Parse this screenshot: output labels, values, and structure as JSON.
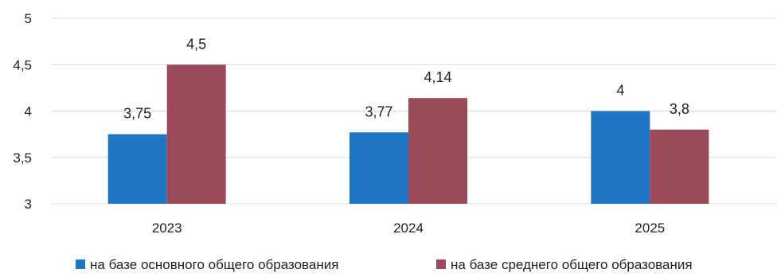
{
  "chart_data": {
    "type": "bar",
    "title": "",
    "xlabel": "",
    "ylabel": "",
    "categories": [
      "2023",
      "2024",
      "2025"
    ],
    "series": [
      {
        "name": "на базе основного общего образования",
        "color": "#1f77c4",
        "values": [
          3.75,
          3.77,
          4
        ],
        "labels": [
          "3,75",
          "3,77",
          "4"
        ]
      },
      {
        "name": "на базе среднего общего образования",
        "color": "#9b4a5a",
        "values": [
          4.5,
          4.14,
          3.8
        ],
        "labels": [
          "4,5",
          "4,14",
          "3,8"
        ]
      }
    ],
    "ylim": [
      3,
      5
    ],
    "yticks": [
      3,
      3.5,
      4,
      4.5,
      5
    ],
    "ytick_labels": [
      "3",
      "3,5",
      "4",
      "4,5",
      "5"
    ],
    "grid": true,
    "legend_position": "bottom"
  }
}
